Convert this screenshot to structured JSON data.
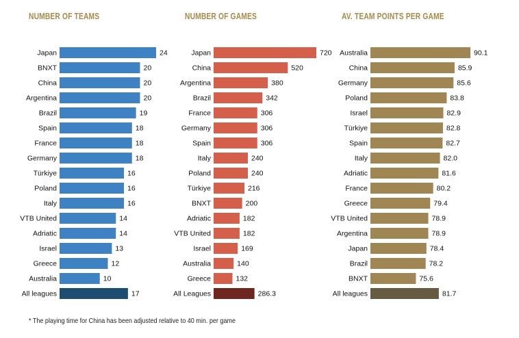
{
  "chart_data": [
    {
      "type": "bar",
      "orientation": "horizontal",
      "title": "NUMBER OF TEAMS",
      "categories": [
        "Japan",
        "BNXT",
        "China",
        "Argentina",
        "Brazil",
        "Spain",
        "France",
        "Germany",
        "Türkiye",
        "Poland",
        "Italy",
        "VTB United",
        "Adriatic",
        "Israel",
        "Greece",
        "Australia",
        "All leagues"
      ],
      "values": [
        24,
        20,
        20,
        20,
        19,
        18,
        18,
        18,
        16,
        16,
        16,
        14,
        14,
        13,
        12,
        10,
        17
      ],
      "labels": [
        "24",
        "20",
        "20",
        "20",
        "19",
        "18",
        "18",
        "18",
        "16",
        "16",
        "16",
        "14",
        "14",
        "13",
        "12",
        "10",
        "17"
      ],
      "xlim": [
        0,
        24
      ],
      "color": "#3f82c4",
      "total_color": "#1e4d72"
    },
    {
      "type": "bar",
      "orientation": "horizontal",
      "title": "NUMBER OF GAMES",
      "categories": [
        "Japan",
        "China",
        "Argentina",
        "Brazil",
        "France",
        "Germany",
        "Spain",
        "Italy",
        "Poland",
        "Türkiye",
        "BNXT",
        "Adriatic",
        "VTB United",
        "Israel",
        "Australia",
        "Greece",
        "All Leagues"
      ],
      "values": [
        720,
        520,
        380,
        342,
        306,
        306,
        306,
        240,
        240,
        216,
        200,
        182,
        182,
        169,
        140,
        132,
        286.3
      ],
      "labels": [
        "720",
        "520",
        "380",
        "342",
        "306",
        "306",
        "306",
        "240",
        "240",
        "216",
        "200",
        "182",
        "182",
        "169",
        "140",
        "132",
        "286.3"
      ],
      "xlim": [
        0,
        720
      ],
      "color": "#d45f4b",
      "total_color": "#6d2620"
    },
    {
      "type": "bar",
      "orientation": "horizontal",
      "title": "AV. TEAM POINTS PER GAME",
      "categories": [
        "Australia",
        "China",
        "Germany",
        "Poland",
        "Israel",
        "Türkiye",
        "Spain",
        "Italy",
        "Adriatic",
        "France",
        "Greece",
        "VTB United",
        "Argentina",
        "Japan",
        "Brazil",
        "BNXT",
        "All leagues"
      ],
      "values": [
        90.1,
        85.9,
        85.6,
        83.8,
        82.9,
        82.8,
        82.7,
        82.0,
        81.6,
        80.2,
        79.4,
        78.9,
        78.9,
        78.4,
        78.2,
        75.6,
        81.7
      ],
      "labels": [
        "90.1",
        "85.9",
        "85.6",
        "83.8",
        "82.9",
        "82.8",
        "82.7",
        "82.0",
        "81.6",
        "80.2",
        "79.4",
        "78.9",
        "78.9",
        "78.4",
        "78.2",
        "75.6",
        "81.7"
      ],
      "xlim": [
        63.5,
        90.1
      ],
      "color": "#a08652",
      "total_color": "#665a43"
    }
  ],
  "footnote": "* The playing time for China has been adjusted relative to 40 min. per game"
}
